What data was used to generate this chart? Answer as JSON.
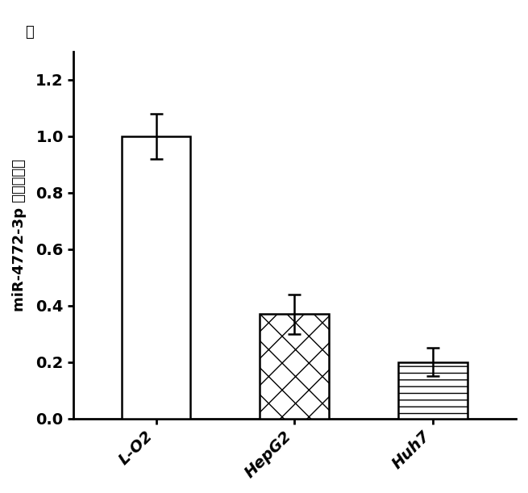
{
  "categories": [
    "L-O2",
    "HepG2",
    "Huh7"
  ],
  "values": [
    1.0,
    0.37,
    0.2
  ],
  "errors": [
    0.08,
    0.07,
    0.05
  ],
  "ylim": [
    0,
    1.3
  ],
  "yticks": [
    0.0,
    0.2,
    0.4,
    0.6,
    0.8,
    1.0,
    1.2
  ],
  "ylabel_main": "miR-4772-3p 的相对表达",
  "ylabel_top": "幅",
  "bar_width": 0.5,
  "bar_edgecolor": "black",
  "error_capsize": 5,
  "tick_label_fontsize": 14,
  "axis_label_fontsize": 13,
  "background_color": "white",
  "hatches": [
    "",
    "x",
    "--"
  ],
  "bar_linewidth": 1.8
}
